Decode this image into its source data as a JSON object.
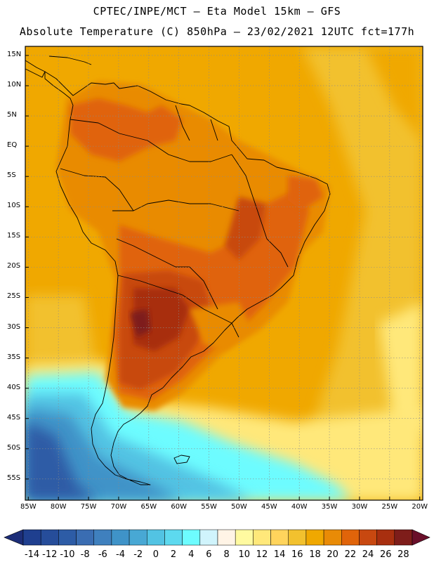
{
  "header": {
    "line1": "CPTEC/INPE/MCT –  Eta Model 15km – GFS",
    "line2": "Absolute Temperature (C) 850hPa – 23/02/2021 12UTC fct=177h"
  },
  "map": {
    "lat_labels": [
      "15N",
      "10N",
      "5N",
      "EQ",
      "5S",
      "10S",
      "15S",
      "20S",
      "25S",
      "30S",
      "35S",
      "40S",
      "45S",
      "50S",
      "55S"
    ],
    "lon_labels": [
      "85W",
      "80W",
      "75W",
      "70W",
      "65W",
      "60W",
      "55W",
      "50W",
      "45W",
      "40W",
      "35W",
      "30W",
      "25W",
      "20W"
    ],
    "lat_range": [
      16.5,
      -58.5
    ],
    "lon_range": [
      -85.5,
      -19.5
    ]
  },
  "colorbar": {
    "labels": [
      "-14",
      "-12",
      "-10",
      "-8",
      "-6",
      "-4",
      "-2",
      "0",
      "2",
      "4",
      "6",
      "8",
      "10",
      "12",
      "14",
      "16",
      "18",
      "20",
      "22",
      "24",
      "26",
      "28"
    ],
    "colors": [
      "#1f3f8f",
      "#264d9a",
      "#2d5ca6",
      "#3a6db2",
      "#3f80be",
      "#3f93c8",
      "#48a8d4",
      "#52c3e3",
      "#5dd9ef",
      "#6dfcff",
      "#d0f4fc",
      "#fff4e6",
      "#fffaa0",
      "#ffe87a",
      "#ffd45c",
      "#f2c12e",
      "#f0a800",
      "#e98b06",
      "#e0640a",
      "#c84810",
      "#a82f0f",
      "#7e1d1a"
    ],
    "min_color": "#1c2d78",
    "max_color": "#6a0f2a"
  },
  "colors": {
    "frame": "#000000",
    "land_outline": "#000000",
    "grid": "#8a8a8a",
    "warm_core": "#8a2a15",
    "hot_land": "#c3520f",
    "land_warm": "#e0820a",
    "ocean_warm": "#f0a800",
    "ocean_mild": "#f2c12e",
    "cool": "#ffe87a",
    "cold": "#5dd9ef",
    "very_cold": "#3a6db2"
  }
}
